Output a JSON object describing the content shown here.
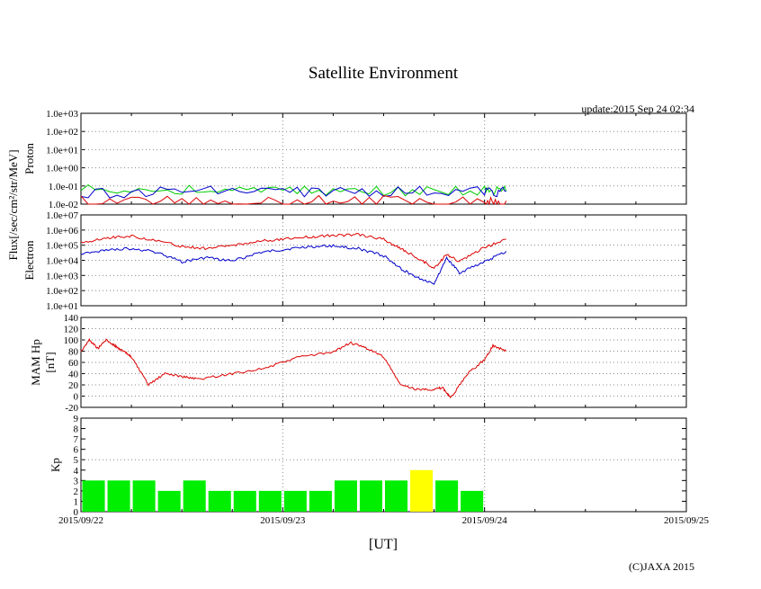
{
  "page": {
    "title": "Satellite Environment",
    "update": "update:2015 Sep 24 02:34",
    "copyright": "(C)JAXA 2015",
    "xlabel": "[UT]",
    "flux_label": "Flux[/sec/cm²/str/MeV]"
  },
  "colors": {
    "red": "#dd0000",
    "blue": "#0000cc",
    "green": "#00cc00",
    "kp_green": "#00ee00",
    "kp_yellow": "#ffff00",
    "grid": "#888888"
  },
  "chart_data": [
    {
      "type": "line",
      "id": "proton",
      "ylabel": "Proton",
      "yscale": "log",
      "ylim": [
        0.01,
        1000
      ],
      "yticks": [
        "1.0e-02",
        "1.0e-01",
        "1.0e+00",
        "1.0e+01",
        "1.0e+02",
        "1.0e+03"
      ],
      "xlim": [
        "2015/09/22",
        "2015/09/25"
      ],
      "grid": true,
      "series": [
        {
          "color": "green",
          "x": [
            "2015/09/22 00:00",
            "2015/09/22 12:00",
            "2015/09/23 00:00",
            "2015/09/23 12:00",
            "2015/09/24 00:00",
            "2015/09/24 02:34"
          ],
          "y": [
            0.06,
            0.06,
            0.06,
            0.05,
            0.05,
            0.05
          ]
        },
        {
          "color": "blue",
          "x": [
            "2015/09/22 00:00",
            "2015/09/22 12:00",
            "2015/09/23 00:00",
            "2015/09/23 12:00",
            "2015/09/24 00:00",
            "2015/09/24 02:34"
          ],
          "y": [
            0.04,
            0.05,
            0.05,
            0.05,
            0.05,
            0.05
          ]
        },
        {
          "color": "red",
          "x": [
            "2015/09/22 00:00",
            "2015/09/22 12:00",
            "2015/09/23 00:00",
            "2015/09/23 12:00",
            "2015/09/24 00:00",
            "2015/09/24 02:34"
          ],
          "y": [
            0.015,
            0.015,
            0.015,
            0.015,
            0.015,
            0.015
          ]
        }
      ]
    },
    {
      "type": "line",
      "id": "electron",
      "ylabel": "Electron",
      "yscale": "log",
      "ylim": [
        10,
        10000000
      ],
      "yticks": [
        "1.0e+01",
        "1.0e+02",
        "1.0e+03",
        "1.0e+04",
        "1.0e+05",
        "1.0e+06",
        "1.0e+07"
      ],
      "xlim": [
        "2015/09/22",
        "2015/09/25"
      ],
      "grid": true,
      "series": [
        {
          "color": "red",
          "x": [
            "2015/09/22 00:00",
            "2015/09/22 03:00",
            "2015/09/22 06:00",
            "2015/09/22 09:00",
            "2015/09/22 12:00",
            "2015/09/22 15:00",
            "2015/09/22 18:00",
            "2015/09/22 21:00",
            "2015/09/23 00:00",
            "2015/09/23 03:00",
            "2015/09/23 06:00",
            "2015/09/23 09:00",
            "2015/09/23 12:00",
            "2015/09/23 14:00",
            "2015/09/23 16:00",
            "2015/09/23 18:00",
            "2015/09/23 19:30",
            "2015/09/23 21:00",
            "2015/09/24 00:00",
            "2015/09/24 02:34"
          ],
          "y": [
            150000,
            300000,
            400000,
            200000,
            80000,
            60000,
            100000,
            180000,
            250000,
            350000,
            450000,
            500000,
            250000,
            60000,
            15000,
            3000,
            25000,
            8000,
            70000,
            250000
          ]
        },
        {
          "color": "blue",
          "x": [
            "2015/09/22 00:00",
            "2015/09/22 03:00",
            "2015/09/22 06:00",
            "2015/09/22 09:00",
            "2015/09/22 12:00",
            "2015/09/22 15:00",
            "2015/09/22 18:00",
            "2015/09/22 21:00",
            "2015/09/23 00:00",
            "2015/09/23 03:00",
            "2015/09/23 06:00",
            "2015/09/23 09:00",
            "2015/09/23 12:00",
            "2015/09/23 14:00",
            "2015/09/23 16:00",
            "2015/09/23 18:00",
            "2015/09/23 19:30",
            "2015/09/23 21:00",
            "2015/09/24 00:00",
            "2015/09/24 02:34"
          ],
          "y": [
            25000,
            50000,
            60000,
            35000,
            8000,
            15000,
            9000,
            30000,
            50000,
            80000,
            90000,
            60000,
            20000,
            3000,
            700,
            300,
            15000,
            1500,
            8000,
            40000
          ]
        }
      ]
    },
    {
      "type": "line",
      "id": "mam",
      "ylabel": "MAM Hp",
      "ylabel2": "[nT]",
      "ylim": [
        -20,
        140
      ],
      "yticks": [
        "-20",
        "0",
        "20",
        "40",
        "60",
        "80",
        "100",
        "120",
        "140"
      ],
      "xlim": [
        "2015/09/22",
        "2015/09/25"
      ],
      "grid": true,
      "series": [
        {
          "color": "red",
          "x": [
            "2015/09/22 00:00",
            "2015/09/22 01:00",
            "2015/09/22 02:00",
            "2015/09/22 03:00",
            "2015/09/22 04:00",
            "2015/09/22 05:00",
            "2015/09/22 06:00",
            "2015/09/22 08:00",
            "2015/09/22 10:00",
            "2015/09/22 12:00",
            "2015/09/22 14:00",
            "2015/09/22 18:00",
            "2015/09/22 22:00",
            "2015/09/23 02:00",
            "2015/09/23 06:00",
            "2015/09/23 08:00",
            "2015/09/23 10:00",
            "2015/09/23 12:00",
            "2015/09/23 14:00",
            "2015/09/23 16:00",
            "2015/09/23 18:00",
            "2015/09/23 19:00",
            "2015/09/23 20:00",
            "2015/09/23 22:00",
            "2015/09/24 00:00",
            "2015/09/24 01:00",
            "2015/09/24 02:34"
          ],
          "y": [
            80,
            100,
            85,
            100,
            90,
            80,
            70,
            20,
            40,
            35,
            30,
            40,
            50,
            70,
            78,
            95,
            85,
            70,
            20,
            12,
            12,
            15,
            -3,
            40,
            65,
            90,
            80
          ]
        }
      ]
    },
    {
      "type": "bar",
      "id": "kp",
      "ylabel": "Kp",
      "ylim": [
        0,
        9
      ],
      "yticks": [
        "0",
        "1",
        "2",
        "3",
        "4",
        "5",
        "6",
        "7",
        "8",
        "9"
      ],
      "grid": true,
      "categories": [
        "2015/09/22 00-03",
        "2015/09/22 03-06",
        "2015/09/22 06-09",
        "2015/09/22 09-12",
        "2015/09/22 12-15",
        "2015/09/22 15-18",
        "2015/09/22 18-21",
        "2015/09/22 21-24",
        "2015/09/23 00-03",
        "2015/09/23 03-06",
        "2015/09/23 06-09",
        "2015/09/23 09-12",
        "2015/09/23 12-15",
        "2015/09/23 15-18",
        "2015/09/23 18-21",
        "2015/09/23 21-24"
      ],
      "values": [
        3,
        3,
        3,
        2,
        3,
        2,
        2,
        2,
        2,
        2,
        3,
        3,
        3,
        4,
        3,
        2
      ],
      "bar_colors": [
        "kp_green",
        "kp_green",
        "kp_green",
        "kp_green",
        "kp_green",
        "kp_green",
        "kp_green",
        "kp_green",
        "kp_green",
        "kp_green",
        "kp_green",
        "kp_green",
        "kp_green",
        "kp_yellow",
        "kp_green",
        "kp_green"
      ],
      "xticks": [
        "2015/09/22",
        "2015/09/23",
        "2015/09/24",
        "2015/09/25"
      ]
    }
  ]
}
